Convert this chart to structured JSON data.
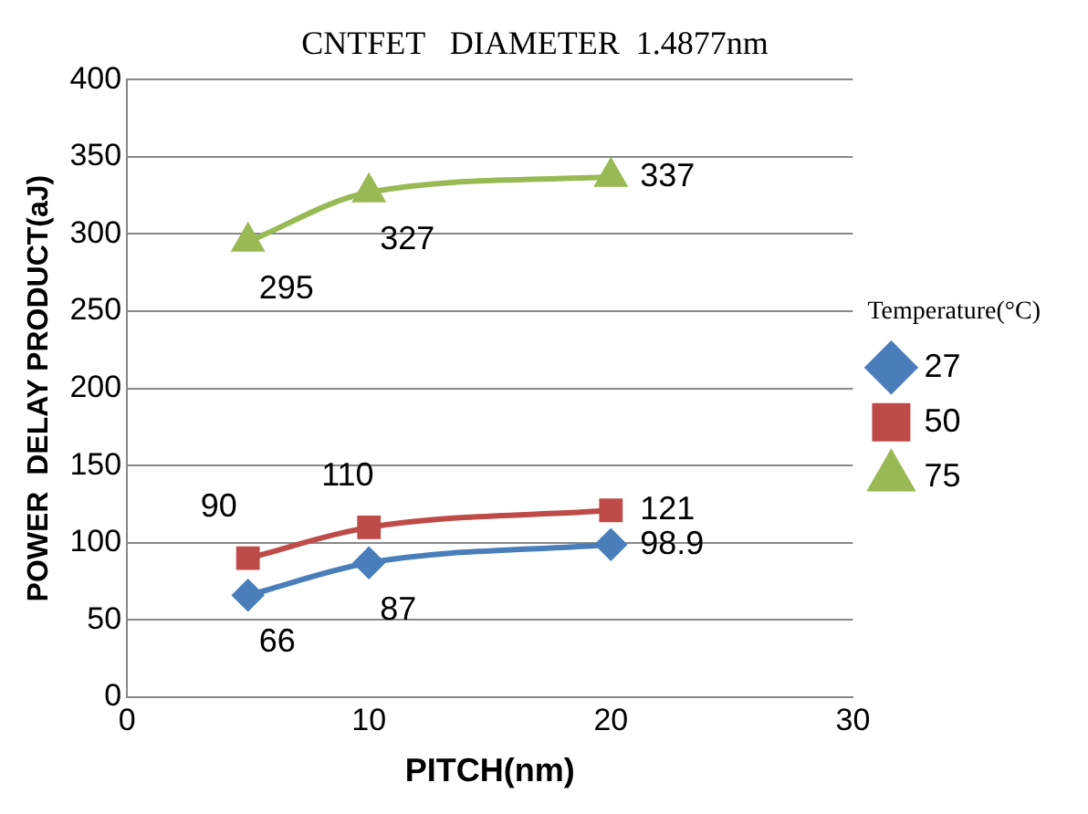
{
  "chart_data": {
    "type": "line",
    "title": "CNTFET   DIAMETER  1.4877nm",
    "xlabel": "PITCH(nm)",
    "ylabel": "POWER  DELAY PRODUCT(aJ)",
    "legend_title": "Temperature(°C)",
    "x": [
      5,
      10,
      20
    ],
    "series": [
      {
        "name": "27",
        "color": "#4a7ebb",
        "marker": "diamond",
        "values": [
          66,
          87,
          98.9
        ]
      },
      {
        "name": "50",
        "color": "#be4b48",
        "marker": "square",
        "values": [
          90,
          110,
          121
        ]
      },
      {
        "name": "75",
        "color": "#98b954",
        "marker": "triangle",
        "values": [
          295,
          327,
          337
        ]
      }
    ],
    "xlim": [
      0,
      30
    ],
    "xticks": [
      0,
      10,
      20,
      30
    ],
    "ylim": [
      0,
      400
    ],
    "yticks": [
      0,
      50,
      100,
      150,
      200,
      250,
      300,
      350,
      400
    ],
    "grid": "y",
    "legend": "right",
    "data_labels": true
  }
}
